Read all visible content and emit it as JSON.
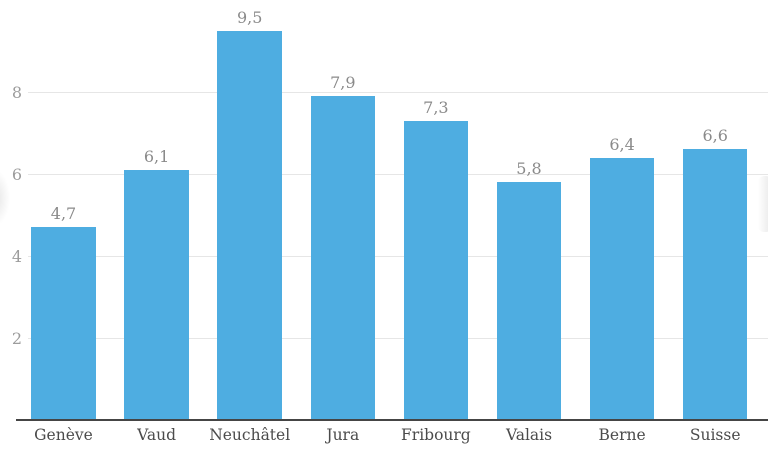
{
  "chart_data": {
    "type": "bar",
    "title": "",
    "xlabel": "",
    "ylabel": "",
    "categories": [
      "Genève",
      "Vaud",
      "Neuchâtel",
      "Jura",
      "Fribourg",
      "Valais",
      "Berne",
      "Suisse"
    ],
    "values": [
      4.7,
      6.1,
      9.5,
      7.9,
      7.3,
      5.8,
      6.4,
      6.6
    ],
    "value_labels": [
      "4,7",
      "6,1",
      "9,5",
      "7,9",
      "7,3",
      "5,8",
      "6,4",
      "6,6"
    ],
    "yticks": [
      2,
      4,
      6,
      8
    ],
    "ytick_labels": [
      "2",
      "4",
      "6",
      "8"
    ],
    "ylim": [
      0,
      10.2
    ],
    "grid": true,
    "legend": false,
    "bar_color": "#4eade1",
    "gridline_color": "#e6e6e6",
    "axis_line_color": "#454545",
    "value_label_color": "#8a8a8a",
    "category_label_color": "#4b4b4b",
    "ytick_label_color": "#9c9c9c"
  }
}
